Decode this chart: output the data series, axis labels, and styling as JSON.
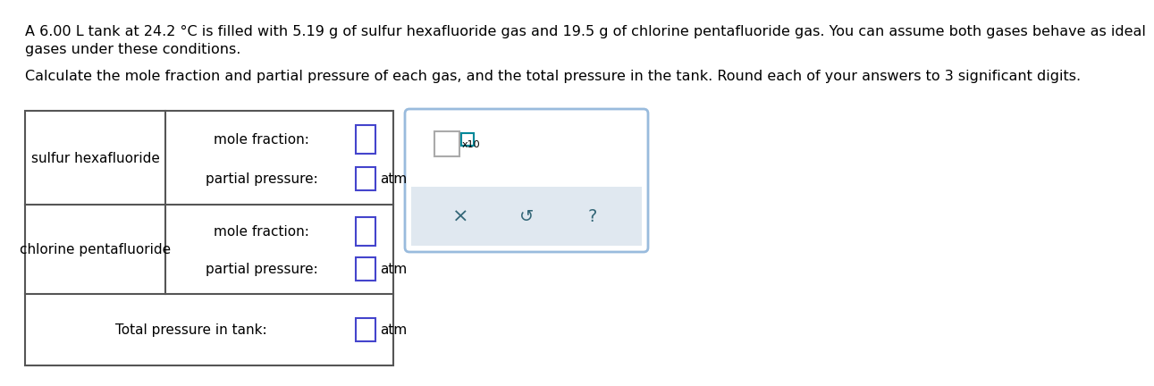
{
  "title_line1": "A 6.00 L tank at 24.2 °C is filled with 5.19 g of sulfur hexafluoride gas and 19.5 g of chlorine pentafluoride gas. You can assume both gases behave as ideal",
  "title_line2": "gases under these conditions.",
  "subtitle": "Calculate the mole fraction and partial pressure of each gas, and the total pressure in the tank. Round each of your answers to 3 significant digits.",
  "gas1_name": "sulfur hexafluoride",
  "gas2_name": "chlorine pentafluoride",
  "mole_fraction_label": "mole fraction:",
  "partial_pressure_label": "partial pressure:",
  "total_pressure_label": "Total pressure in tank:",
  "atm_label": "atm",
  "x10_label": "x10",
  "input_box_color": "#4444cc",
  "input_box_mf_color": "#6666dd",
  "popup_border_color": "#99bbdd",
  "popup_bg": "#ffffff",
  "popup_toolbar_bg": "#e0e8f0",
  "table_border_color": "#555555",
  "text_color": "#000000",
  "teal_color": "#008899",
  "icon_color": "#336677",
  "font_size_body": 11.5,
  "font_size_table": 11,
  "bg_color": "#ffffff"
}
